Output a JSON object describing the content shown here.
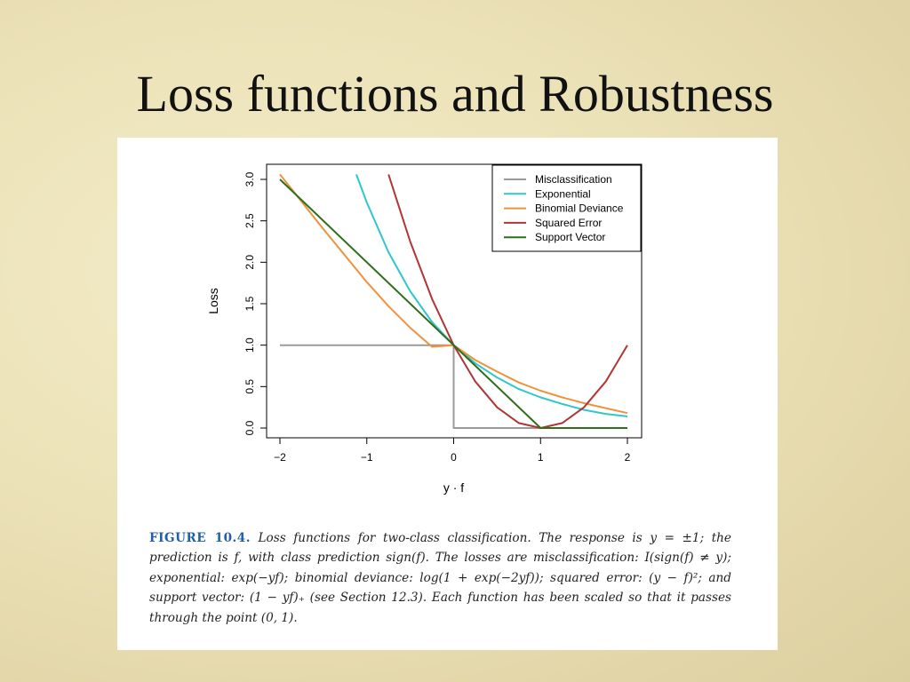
{
  "slide": {
    "title": "Loss functions and Robustness"
  },
  "figure": {
    "label": "FIGURE 10.4.",
    "caption": "Loss functions for two-class classification. The response is y = ±1; the prediction is f, with class prediction sign(f). The losses are misclassification: I(sign(f) ≠ y); exponential: exp(−yf); binomial deviance: log(1 + exp(−2yf)); squared error: (y − f)²; and support vector: (1 − yf)₊ (see Section 12.3). Each function has been scaled so that it passes through the point (0, 1)."
  },
  "chart_data": {
    "type": "line",
    "xlabel": "y · f",
    "ylabel": "Loss",
    "xlim": [
      -2,
      2
    ],
    "ylim": [
      0,
      3
    ],
    "xticks": [
      -2,
      -1,
      0,
      1,
      2
    ],
    "xtick_labels": [
      "−2",
      "−1",
      "0",
      "1",
      "2"
    ],
    "yticks": [
      0,
      0.5,
      1,
      1.5,
      2,
      2.5,
      3
    ],
    "ytick_labels": [
      "0.0",
      "0.5",
      "1.0",
      "1.5",
      "2.0",
      "2.5",
      "3.0"
    ],
    "grid": false,
    "legend_position": "top-right",
    "series": [
      {
        "name": "Misclassification",
        "color": "#9a9a9a",
        "x": [
          -2,
          0,
          0,
          2
        ],
        "y": [
          1,
          1,
          0,
          0
        ]
      },
      {
        "name": "Exponential",
        "color": "#2ec7cf",
        "x": [
          -1.12,
          -1.0,
          -0.75,
          -0.5,
          -0.25,
          0,
          0.25,
          0.5,
          0.75,
          1.0,
          1.25,
          1.5,
          1.75,
          2.0
        ],
        "y": [
          3.06,
          2.72,
          2.12,
          1.65,
          1.28,
          1.0,
          0.78,
          0.61,
          0.47,
          0.37,
          0.29,
          0.22,
          0.17,
          0.14
        ]
      },
      {
        "name": "Binomial Deviance",
        "color": "#f0923c",
        "x": [
          -2.0,
          -1.5,
          -1.0,
          -0.75,
          -0.5,
          -0.25,
          0,
          0.25,
          0.5,
          0.75,
          1.0,
          1.25,
          1.5,
          1.75,
          2.0
        ],
        "y": [
          3.06,
          2.4,
          1.76,
          1.47,
          1.21,
          0.98,
          1.0,
          0.82,
          0.68,
          0.55,
          0.45,
          0.37,
          0.3,
          0.24,
          0.18
        ]
      },
      {
        "name": "Squared Error",
        "color": "#b03535",
        "x": [
          -0.75,
          -0.5,
          -0.25,
          0,
          0.25,
          0.5,
          0.75,
          1.0,
          1.25,
          1.5,
          1.75,
          2.0
        ],
        "y": [
          3.06,
          2.25,
          1.56,
          1.0,
          0.56,
          0.25,
          0.06,
          0.0,
          0.06,
          0.25,
          0.56,
          1.0
        ]
      },
      {
        "name": "Support Vector",
        "color": "#2e6e1c",
        "x": [
          -2,
          1,
          2
        ],
        "y": [
          3,
          0,
          0
        ]
      }
    ]
  }
}
